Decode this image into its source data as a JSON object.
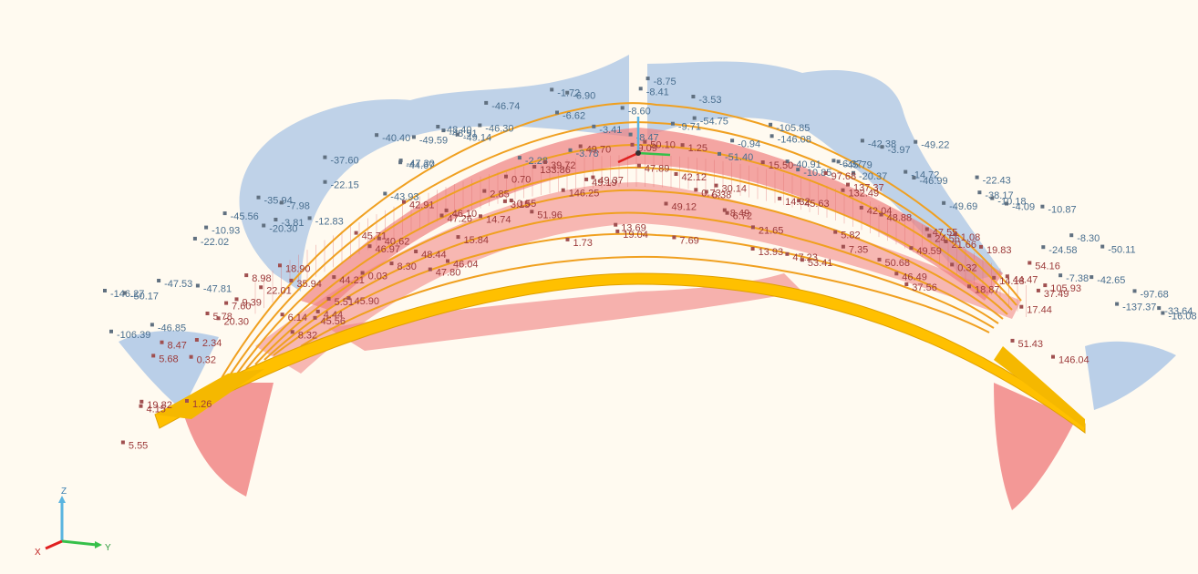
{
  "colors": {
    "background": "#fffaf0",
    "negative_fill": "#a9c4e6",
    "positive_fill": "#f08080",
    "beam": "#f0a020",
    "deck": "#ffc000",
    "neg_text": "#4a6f8f",
    "pos_text": "#9c3a3a"
  },
  "triad": {
    "x": "X",
    "y": "Y",
    "z": "Z"
  },
  "labels": {
    "negative": [
      "-146.27",
      "-106.39",
      "-50.17",
      "-46.85",
      "-47.53",
      "-22.02",
      "-47.81",
      "-10.93",
      "-45.56",
      "-35.94",
      "-3.81",
      "-20.30",
      "-7.98",
      "-12.83",
      "-22.15",
      "-37.60",
      "-40.40",
      "-43.93",
      "-44.67",
      "-47.30",
      "-49.59",
      "-48.91",
      "-48.40",
      "-49.14",
      "-46.30",
      "-46.74",
      "-2.28",
      "-1.72",
      "-6.62",
      "-6.90",
      "-3.78",
      "-3.41",
      "-8.60",
      "-8.41",
      "-8.47",
      "-8.75",
      "-9.71",
      "-3.53",
      "-54.75",
      "-51.40",
      "-0.94",
      "-146.08",
      "-105.85",
      "-40.91",
      "-10.85",
      "-6.37",
      "-45.79",
      "-20.37",
      "-42.38",
      "-3.97",
      "-14.72",
      "-49.22",
      "-46.99",
      "-49.69",
      "-38.17",
      "-22.43",
      "-10.18",
      "-4.09",
      "-24.58",
      "-10.87",
      "-7.38",
      "-8.30",
      "-50.11",
      "-42.65",
      "-137.37",
      "-97.68",
      "-33.64",
      "-16.08"
    ],
    "positive": [
      "5.55",
      "19.82",
      "4.15",
      "5.68",
      "8.47",
      "1.26",
      "0.32",
      "2.34",
      "5.78",
      "20.30",
      "7.60",
      "8.98",
      "9.39",
      "22.01",
      "18.90",
      "8.32",
      "6.14",
      "35.94",
      "4.44",
      "45.56",
      "44.21",
      "5.51",
      "0.03",
      "45.90",
      "45.71",
      "46.97",
      "40.62",
      "8.30",
      "42.91",
      "48.44",
      "47.80",
      "47.26",
      "46.04",
      "46.10",
      "15.84",
      "14.74",
      "2.85",
      "0.70",
      "0.55",
      "3.15",
      "51.96",
      "39.72",
      "133.86",
      "146.25",
      "1.73",
      "49.70",
      "49.19",
      "49.37",
      "13.69",
      "19.04",
      "9.09",
      "47.89",
      "50.10",
      "49.12",
      "42.12",
      "7.69",
      "0.73",
      "1.25",
      "6.38",
      "30.14",
      "6.72",
      "8.49",
      "21.65",
      "13.93",
      "15.50",
      "47.23",
      "14.32",
      "53.41",
      "45.63",
      "97.68",
      "5.82",
      "7.35",
      "132.49",
      "137.37",
      "42.04",
      "50.68",
      "48.88",
      "46.49",
      "49.59",
      "37.56",
      "47.55",
      "24.56",
      "21.66",
      "1.08",
      "0.32",
      "18.87",
      "14.18",
      "19.83",
      "44.47",
      "51.43",
      "54.16",
      "17.44",
      "37.49",
      "105.93",
      "146.04"
    ]
  }
}
